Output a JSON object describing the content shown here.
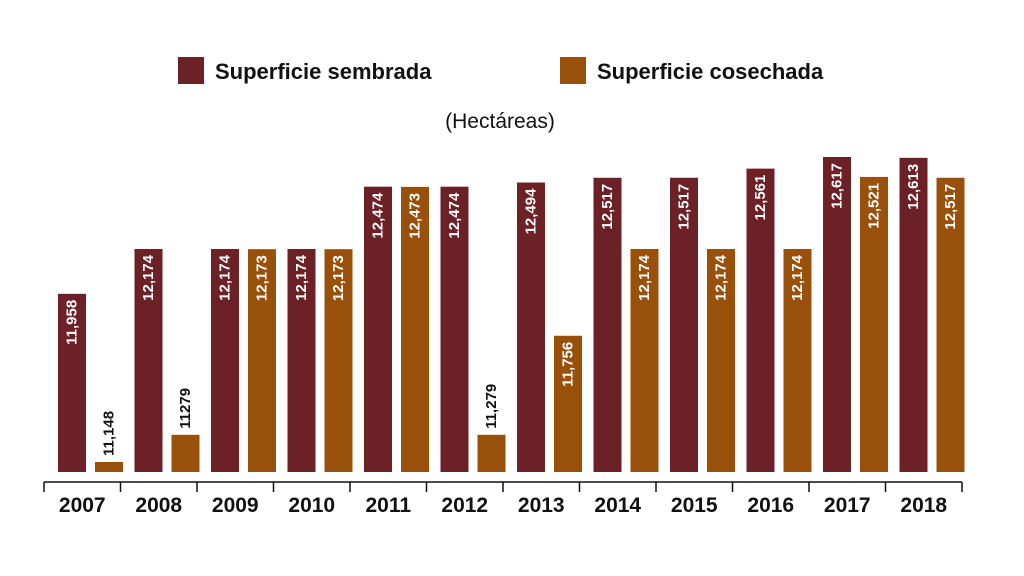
{
  "colors": {
    "sembrada": "#6b2125",
    "cosechada": "#98500a",
    "axis": "#111111"
  },
  "chart_data": {
    "type": "bar",
    "unit_label": "(Hectáreas)",
    "categories": [
      "2007",
      "2008",
      "2009",
      "2010",
      "2011",
      "2012",
      "2013",
      "2014",
      "2015",
      "2016",
      "2017",
      "2018"
    ],
    "series": [
      {
        "name": "Superficie sembrada",
        "color": "#6b2125",
        "values": [
          11958,
          12174,
          12174,
          12174,
          12474,
          12474,
          12494,
          12517,
          12517,
          12561,
          12617,
          12613
        ],
        "labels": [
          "11,958",
          "12,174",
          "12,174",
          "12,174",
          "12,474",
          "12,474",
          "12,494",
          "12,517",
          "12,517",
          "12,561",
          "12,617",
          "12,613"
        ]
      },
      {
        "name": "Superficie cosechada",
        "color": "#98500a",
        "values": [
          11148,
          11279,
          12173,
          12173,
          12473,
          11279,
          11756,
          12174,
          12174,
          12174,
          12521,
          12517
        ],
        "labels": [
          "11,148",
          "11279",
          "12,173",
          "12,173",
          "12,473",
          "11,279",
          "11,756",
          "12,174",
          "12,174",
          "12,174",
          "12,521",
          "12,517"
        ]
      }
    ],
    "legend_position": "top",
    "grid": false
  }
}
